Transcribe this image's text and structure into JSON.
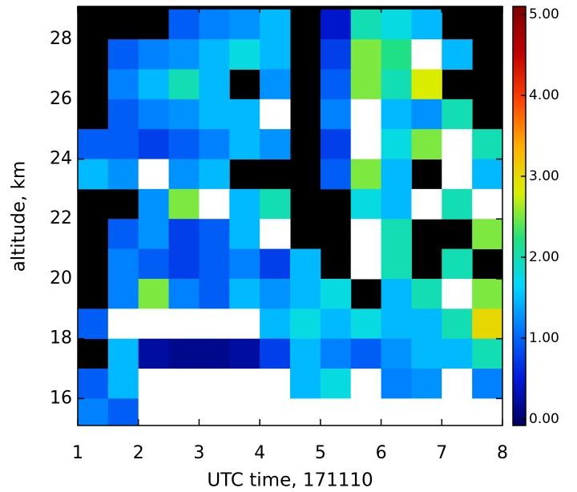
{
  "chart_data": {
    "type": "heatmap",
    "x_label": "UTC time, 171110",
    "y_label": "altitude, km",
    "xlim": [
      1,
      8
    ],
    "ylim": [
      15.1,
      29.1
    ],
    "xticks": [
      1,
      2,
      3,
      4,
      5,
      6,
      7,
      8
    ],
    "yticks": [
      16,
      18,
      20,
      22,
      24,
      26,
      28
    ],
    "x_edges": [
      1,
      1.5,
      2,
      2.5,
      3,
      3.5,
      4,
      4.5,
      5,
      5.5,
      6,
      6.5,
      7,
      7.5,
      8
    ],
    "y_edges": [
      29,
      28,
      27,
      26,
      25,
      24,
      23,
      22,
      21,
      20,
      19,
      18,
      17,
      16,
      15
    ],
    "z": [
      [
        null,
        null,
        null,
        1,
        1.2,
        1.3,
        1.5,
        null,
        0.5,
        2,
        1.8,
        1.5,
        null,
        null
      ],
      [
        null,
        1,
        1.2,
        1.3,
        1.5,
        1.8,
        1.5,
        null,
        0.8,
        2.5,
        2.2,
        6,
        1.5,
        null
      ],
      [
        null,
        1.2,
        1.5,
        2,
        1.5,
        null,
        1.3,
        null,
        1,
        2.5,
        2,
        2.8,
        null,
        null
      ],
      [
        null,
        1,
        1.2,
        1.3,
        1.5,
        1.5,
        6,
        null,
        1.2,
        6,
        1.5,
        1.3,
        2,
        null
      ],
      [
        1,
        1,
        0.8,
        1,
        1.2,
        1.5,
        1.3,
        null,
        0.8,
        6,
        1.8,
        2.5,
        6,
        2
      ],
      [
        1.5,
        1.3,
        6,
        1.3,
        1.5,
        null,
        null,
        null,
        1,
        2.5,
        1.5,
        null,
        6,
        1.5
      ],
      [
        null,
        null,
        1.3,
        2.5,
        6,
        1.5,
        2,
        null,
        null,
        1.8,
        1.5,
        6,
        2,
        6
      ],
      [
        null,
        1,
        1.3,
        0.8,
        1,
        1.5,
        6,
        null,
        null,
        6,
        2,
        null,
        null,
        2.5
      ],
      [
        null,
        1.2,
        1,
        0.8,
        1,
        1.2,
        0.8,
        1.5,
        null,
        6,
        2,
        null,
        2,
        null
      ],
      [
        null,
        1.2,
        2.5,
        1.2,
        1,
        1.5,
        1.3,
        1.5,
        1.8,
        null,
        1.5,
        2,
        6,
        2.5
      ],
      [
        1,
        6,
        6,
        6,
        6,
        6,
        1.5,
        1.8,
        1.5,
        1.8,
        1.5,
        1.5,
        2,
        3
      ],
      [
        null,
        1.5,
        0.3,
        0.2,
        0.2,
        0.3,
        0.8,
        1.5,
        1.2,
        1,
        1.3,
        1.5,
        1.5,
        2
      ],
      [
        1,
        1.5,
        6,
        6,
        6,
        6,
        6,
        1.5,
        1.8,
        6,
        1.2,
        1.3,
        6,
        1.2
      ],
      [
        1.2,
        1,
        6,
        6,
        6,
        6,
        6,
        6,
        6,
        6,
        6,
        6,
        6,
        6
      ]
    ],
    "clim": [
      0,
      5
    ],
    "colorbar_ticks": [
      {
        "value": 0,
        "label": "0.00"
      },
      {
        "value": 1,
        "label": "1.00"
      },
      {
        "value": 2,
        "label": "2.00"
      },
      {
        "value": 3,
        "label": "3.00"
      },
      {
        "value": 4,
        "label": "4.00"
      },
      {
        "value": 5,
        "label": "5.00"
      }
    ],
    "colormap": [
      "#000060",
      "#0018d8",
      "#0070ff",
      "#00d8ff",
      "#20e080",
      "#d8f000",
      "#ffb000",
      "#ff4000",
      "#c00000",
      "#800000"
    ],
    "missing_color": "#000000",
    "over_color": "#ffffff"
  }
}
